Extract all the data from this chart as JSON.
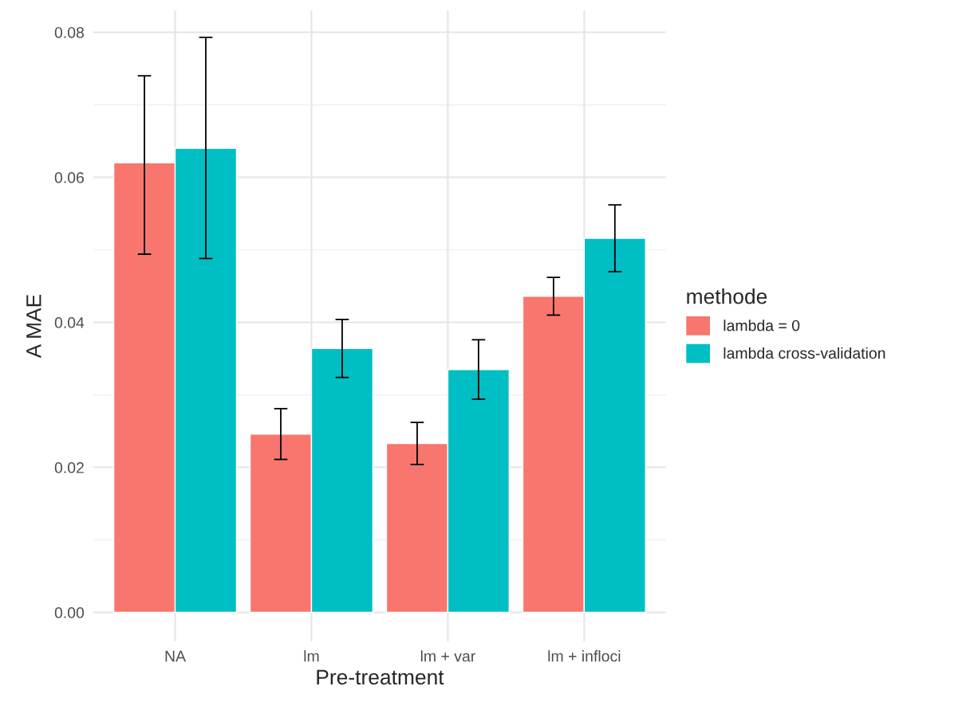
{
  "chart_data": {
    "type": "bar",
    "xlabel": "Pre-treatment",
    "ylabel": "A MAE",
    "legend_title": "methode",
    "categories": [
      "NA",
      "lm",
      "lm + var",
      "lm + infloci"
    ],
    "series": [
      {
        "name": "lambda = 0",
        "color": "#f8766d",
        "values": [
          0.062,
          0.0246,
          0.0233,
          0.0436
        ],
        "errors": [
          [
            0.0494,
            0.074
          ],
          [
            0.0211,
            0.0281
          ],
          [
            0.0204,
            0.0262
          ],
          [
            0.041,
            0.0462
          ]
        ]
      },
      {
        "name": "lambda cross-validation",
        "color": "#00bfc4",
        "values": [
          0.064,
          0.0364,
          0.0335,
          0.0516
        ],
        "errors": [
          [
            0.0488,
            0.0793
          ],
          [
            0.0324,
            0.0404
          ],
          [
            0.0294,
            0.0376
          ],
          [
            0.047,
            0.0562
          ]
        ]
      }
    ],
    "ylim": [
      -0.004,
      0.083
    ],
    "yticks": [
      {
        "value": 0,
        "label": "0.00"
      },
      {
        "value": 0.02,
        "label": "0.02"
      },
      {
        "value": 0.04,
        "label": "0.04"
      },
      {
        "value": 0.06,
        "label": "0.06"
      },
      {
        "value": 0.08,
        "label": "0.08"
      }
    ],
    "grid": true,
    "legend": "right"
  }
}
